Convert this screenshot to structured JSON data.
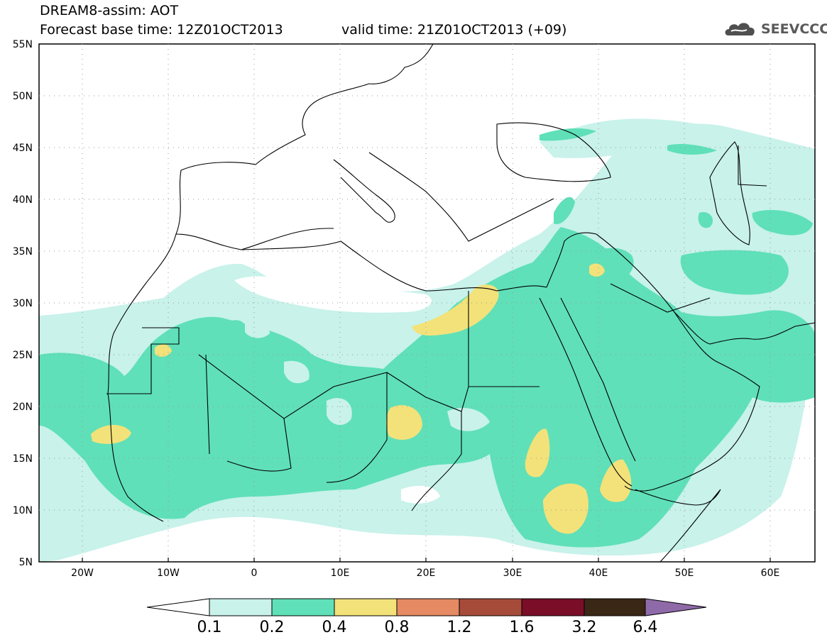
{
  "header": {
    "title": "DREAM8-assim: AOT",
    "base_time": "Forecast base time: 12Z01OCT2013",
    "valid_time": "valid time: 21Z01OCT2013 (+09)",
    "logo_text": "SEEVCCC"
  },
  "map": {
    "lon_labels": [
      "20W",
      "10W",
      "0",
      "10E",
      "20E",
      "30E",
      "40E",
      "50E",
      "60E"
    ],
    "lat_labels": [
      "5N",
      "10N",
      "15N",
      "20N",
      "25N",
      "30N",
      "35N",
      "40N",
      "45N",
      "50N",
      "55N"
    ]
  },
  "colorbar": {
    "levels": [
      "0.1",
      "0.2",
      "0.4",
      "0.8",
      "1.2",
      "1.6",
      "3.2",
      "6.4"
    ],
    "colors": [
      "#c8f2ea",
      "#5fe0b8",
      "#f3e27a",
      "#e58a62",
      "#a64b3a",
      "#7a0d27",
      "#3b2716",
      "#8f6aa8"
    ]
  }
}
